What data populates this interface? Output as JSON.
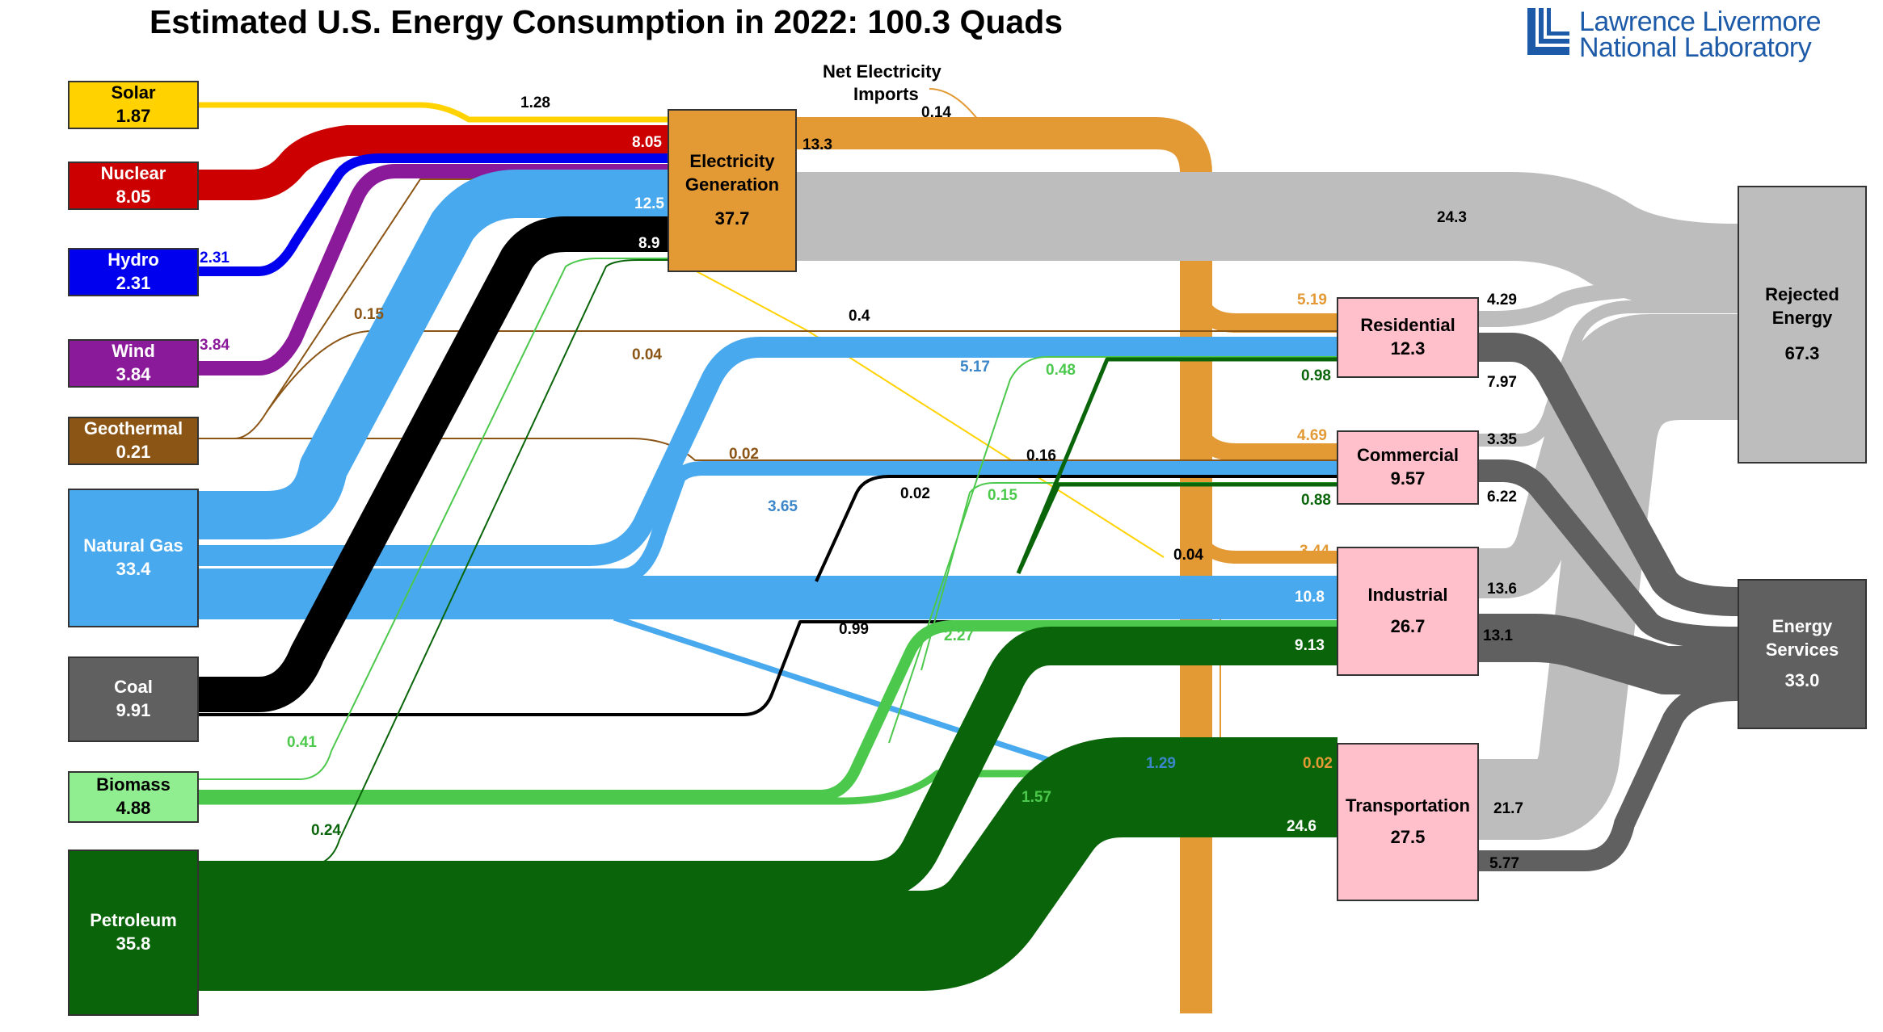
{
  "title": "Estimated U.S. Energy Consumption in 2022: 100.3 Quads",
  "logo": {
    "line1": "Lawrence Livermore",
    "line2": "National Laboratory"
  },
  "net_imports": {
    "line1": "Net Electricity",
    "line2": "Imports"
  },
  "colors": {
    "solar": "#ffd200",
    "nuclear": "#cc0000",
    "hydro": "#0000ee",
    "wind": "#8b1a9a",
    "geothermal": "#8b5515",
    "gas": "#49a9ee",
    "coal": "#000000",
    "biomass": "#4cc94c",
    "petroleum": "#0a650a",
    "electricity": "#e39a35",
    "rejected": "#bdbdbd",
    "services": "#606060",
    "sector": "#ffc0cb"
  },
  "sources": {
    "solar": {
      "name": "Solar",
      "value": "1.87"
    },
    "nuclear": {
      "name": "Nuclear",
      "value": "8.05"
    },
    "hydro": {
      "name": "Hydro",
      "value": "2.31"
    },
    "wind": {
      "name": "Wind",
      "value": "3.84"
    },
    "geothermal": {
      "name": "Geothermal",
      "value": "0.21"
    },
    "gas": {
      "name": "Natural Gas",
      "value": "33.4"
    },
    "coal": {
      "name": "Coal",
      "value": "9.91"
    },
    "biomass": {
      "name": "Biomass",
      "value": "4.88"
    },
    "petroleum": {
      "name": "Petroleum",
      "value": "35.8"
    }
  },
  "hubs": {
    "electricity": {
      "name_line1": "Electricity",
      "name_line2": "Generation",
      "value": "37.7"
    },
    "residential": {
      "name": "Residential",
      "value": "12.3"
    },
    "commercial": {
      "name": "Commercial",
      "value": "9.57"
    },
    "industrial": {
      "name": "Industrial",
      "value": "26.7"
    },
    "transportation": {
      "name": "Transportation",
      "value": "27.5"
    },
    "rejected": {
      "name_line1": "Rejected",
      "name_line2": "Energy",
      "value": "67.3"
    },
    "services": {
      "name_line1": "Energy",
      "name_line2": "Services",
      "value": "33.0"
    }
  },
  "flows": {
    "solar_elec": "1.28",
    "nuclear_elec": "8.05",
    "hydro_elec": "2.31",
    "wind_elec": "3.84",
    "gas_elec": "12.5",
    "coal_elec": "8.9",
    "imports": "0.14",
    "elec_loss": "13.3",
    "elec_rejected": "24.3",
    "geo_elec": "0.15",
    "geo_res": "0.04",
    "solar_res": "0.4",
    "gas_res": "5.17",
    "bio_res": "0.48",
    "pet_res": "0.98",
    "elec_res": "5.19",
    "res_rej": "4.29",
    "res_serv": "7.97",
    "geo_com": "0.02",
    "solar_com": "0.16",
    "gas_com": "3.65",
    "coal_com": "0.02",
    "bio_com": "0.15",
    "pet_com": "0.88",
    "elec_com": "4.69",
    "com_rej": "3.35",
    "com_serv": "6.22",
    "solar_ind": "0.04",
    "elec_ind": "3.44",
    "gas_ind": "10.8",
    "coal_ind": "0.99",
    "bio_ind": "2.27",
    "pet_ind": "9.13",
    "ind_rej": "13.6",
    "ind_serv": "13.1",
    "bio_elec": "0.41",
    "pet_elec": "0.24",
    "gas_trans": "1.29",
    "elec_trans": "0.02",
    "bio_trans": "1.57",
    "pet_trans": "24.6",
    "trans_rej": "21.7",
    "trans_serv": "5.77"
  }
}
